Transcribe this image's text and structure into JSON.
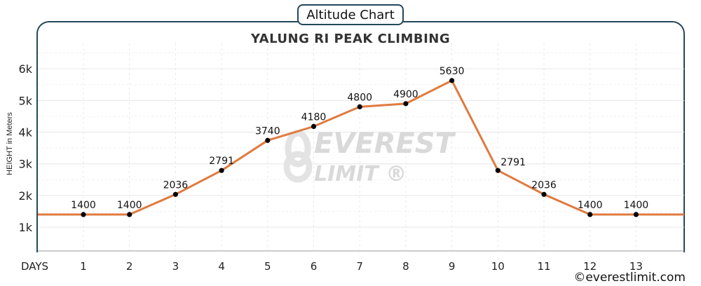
{
  "badge_title": "Altitude Chart",
  "credit": "©everestlimit.com",
  "watermark": {
    "line1": "EVEREST",
    "line2": "LIMIT ®"
  },
  "chart_data": {
    "type": "line",
    "title": "YALUNG RI PEAK CLIMBING",
    "ylabel": "HEIGHT in Meters",
    "xlabel": "DAYS",
    "categories": [
      "1",
      "2",
      "3",
      "4",
      "5",
      "6",
      "7",
      "8",
      "9",
      "10",
      "11",
      "12",
      "13"
    ],
    "values": [
      1400,
      1400,
      2036,
      2791,
      3740,
      4180,
      4800,
      4900,
      5630,
      2791,
      2036,
      1400,
      1400
    ],
    "data_labels": [
      "1400",
      "1400",
      "2036",
      "2791",
      "3740",
      "4180",
      "4800",
      "4900",
      "5630",
      "2791",
      "2036",
      "1400",
      "1400"
    ],
    "yticks": [
      {
        "value": 1000,
        "label": "1k"
      },
      {
        "value": 2000,
        "label": "2k"
      },
      {
        "value": 3000,
        "label": "3k"
      },
      {
        "value": 4000,
        "label": "4k"
      },
      {
        "value": 5000,
        "label": "5k"
      },
      {
        "value": 6000,
        "label": "6k"
      }
    ],
    "ylim": [
      250,
      6800
    ],
    "grid": true,
    "line_color": "#e07a3f",
    "marker_color": "#000000"
  }
}
